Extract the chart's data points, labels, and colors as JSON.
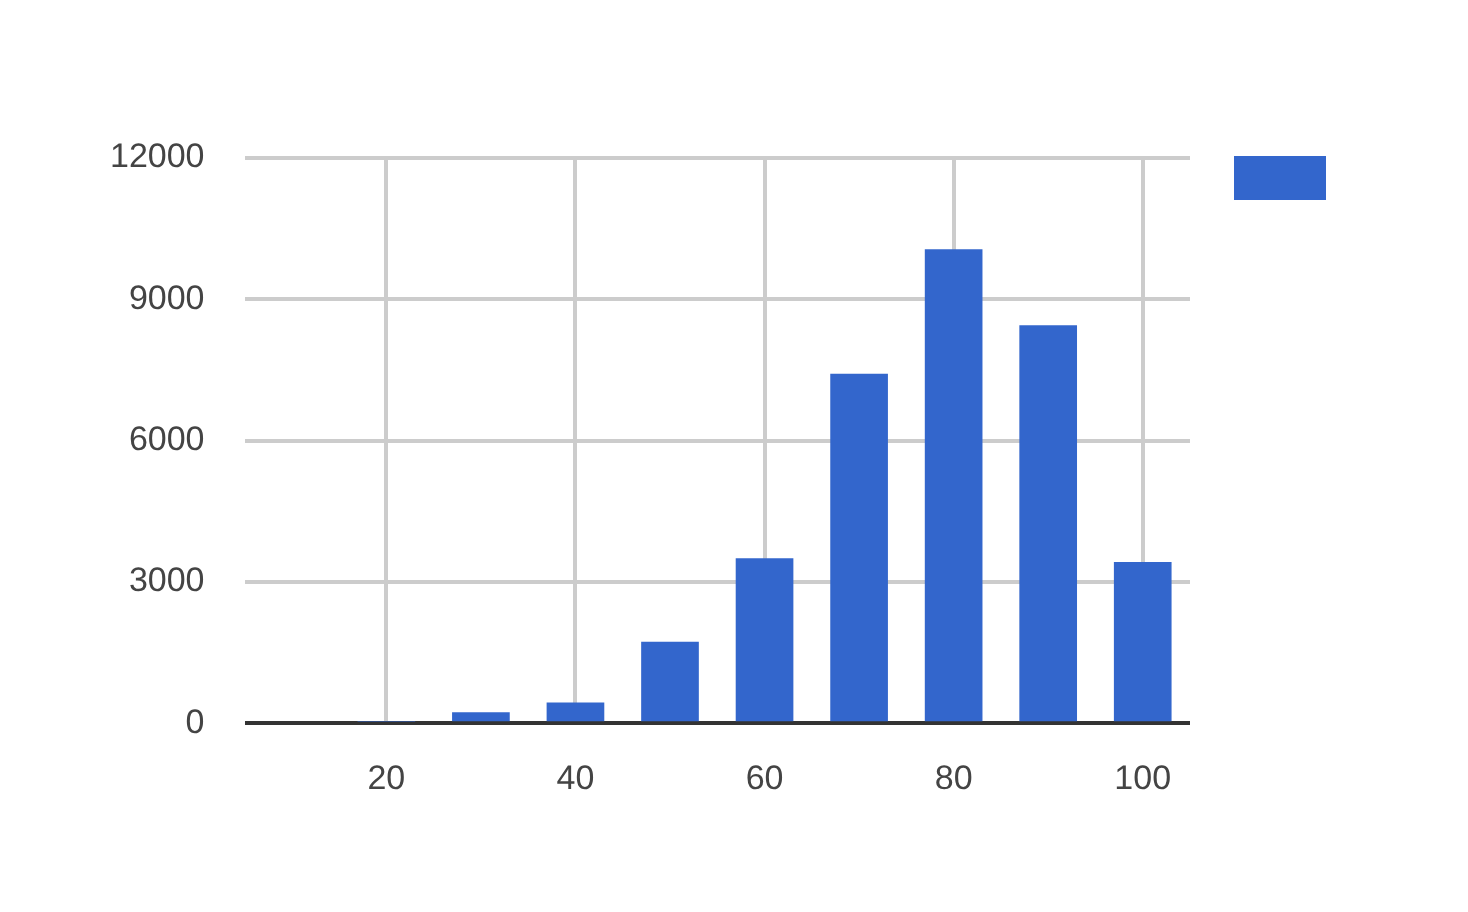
{
  "chart_data": {
    "type": "bar",
    "x": [
      20,
      30,
      40,
      50,
      60,
      70,
      80,
      90,
      100
    ],
    "series": [
      {
        "color": "#3366cc",
        "values": [
          30,
          230,
          440,
          1730,
          3500,
          7420,
          10060,
          8450,
          3420
        ]
      }
    ],
    "xlim": [
      5,
      105
    ],
    "xticks": [
      20,
      40,
      60,
      80,
      100
    ],
    "ylim": [
      0,
      12000
    ],
    "yticks": [
      0,
      3000,
      6000,
      9000,
      12000
    ],
    "grid": true
  }
}
